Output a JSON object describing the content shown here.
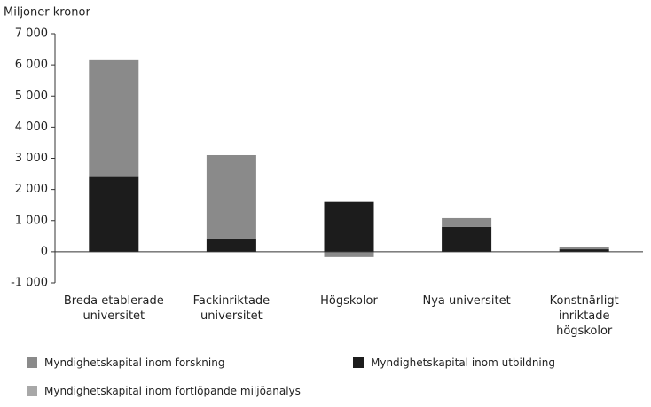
{
  "chart_data": {
    "type": "stacked_bar",
    "y_label": "Miljoner kronor",
    "categories": [
      "Breda etablerade\nuniversitet",
      "Fackinriktade\nuniversitet",
      "Högskolor",
      "Nya universitet",
      "Konstnärligt\ninriktade\nhögskolor"
    ],
    "series": [
      {
        "name": "Myndighetskapital inom forskning",
        "color": "#8a8a8a",
        "values": [
          3750,
          2670,
          -170,
          280,
          60
        ]
      },
      {
        "name": "Myndighetskapital inom utbildning",
        "color": "#1c1c1c",
        "values": [
          2400,
          430,
          1600,
          800,
          80
        ]
      },
      {
        "name": "Myndighetskapital inom fortlöpande miljöanalys",
        "color": "#a8a8a8",
        "values": [
          0,
          0,
          0,
          0,
          0
        ]
      }
    ],
    "ylim": [
      -1000,
      7000
    ],
    "yticks": [
      {
        "value": -1000,
        "label": "-1 000"
      },
      0,
      {
        "value": 1000,
        "label": "1 000"
      },
      {
        "value": 2000,
        "label": "2 000"
      },
      {
        "value": 3000,
        "label": "3 000"
      },
      {
        "value": 4000,
        "label": "4 000"
      },
      {
        "value": 5000,
        "label": "5 000"
      },
      {
        "value": 6000,
        "label": "6 000"
      },
      {
        "value": 7000,
        "label": "7 000"
      }
    ],
    "grid": false
  }
}
